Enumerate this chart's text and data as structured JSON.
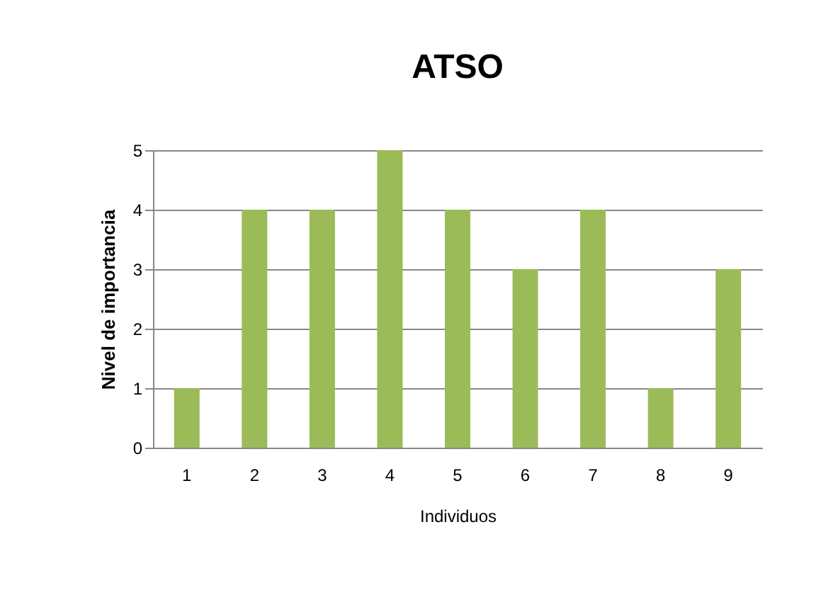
{
  "chart_data": {
    "type": "bar",
    "title": "ATSO",
    "xlabel": "Individuos",
    "ylabel": "Nivel de importancia",
    "categories": [
      "1",
      "2",
      "3",
      "4",
      "5",
      "6",
      "7",
      "8",
      "9"
    ],
    "values": [
      1,
      4,
      4,
      5,
      4,
      3,
      4,
      1,
      3
    ],
    "color": "#9bbb59",
    "ylim": [
      0,
      5
    ],
    "yticks": [
      0,
      1,
      2,
      3,
      4,
      5
    ],
    "grid": "y"
  }
}
